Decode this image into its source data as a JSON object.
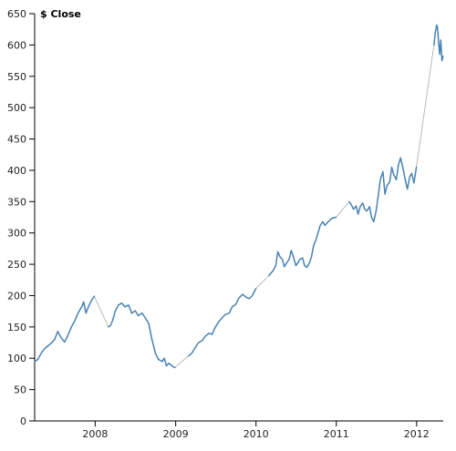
{
  "chart_data": {
    "type": "line",
    "ylabel": "$ Close",
    "ylim": [
      0,
      650
    ],
    "y_ticks": [
      0,
      50,
      100,
      150,
      200,
      250,
      300,
      350,
      400,
      450,
      500,
      550,
      600,
      650
    ],
    "y_tick_labels": [
      "0",
      "50",
      "100",
      "150",
      "200",
      "250",
      "300",
      "350",
      "400",
      "450",
      "500",
      "550",
      "600",
      "650"
    ],
    "xlim": [
      "2007-04-01",
      "2012-05-01"
    ],
    "x_ticks": [
      "2008-01-01",
      "2009-01-01",
      "2010-01-01",
      "2011-01-01",
      "2012-01-01"
    ],
    "x_tick_labels": [
      "2008",
      "2009",
      "2010",
      "2011",
      "2012"
    ],
    "series_color": "#4682b4",
    "gap_color": "#bbbbbb",
    "segments": [
      [
        [
          "2007-04-01",
          95
        ],
        [
          "2007-04-15",
          98
        ],
        [
          "2007-05-01",
          108
        ],
        [
          "2007-05-15",
          115
        ],
        [
          "2007-06-01",
          120
        ],
        [
          "2007-06-15",
          124
        ],
        [
          "2007-07-01",
          130
        ],
        [
          "2007-07-15",
          143
        ],
        [
          "2007-08-01",
          132
        ],
        [
          "2007-08-15",
          126
        ],
        [
          "2007-09-01",
          138
        ],
        [
          "2007-09-15",
          150
        ],
        [
          "2007-10-01",
          160
        ],
        [
          "2007-10-15",
          172
        ],
        [
          "2007-11-01",
          182
        ],
        [
          "2007-11-10",
          190
        ],
        [
          "2007-11-20",
          172
        ],
        [
          "2007-12-01",
          182
        ],
        [
          "2007-12-15",
          192
        ],
        [
          "2007-12-28",
          199
        ]
      ],
      [
        [
          "2008-03-01",
          150
        ],
        [
          "2008-03-10",
          152
        ],
        [
          "2008-03-20",
          160
        ],
        [
          "2008-04-01",
          175
        ],
        [
          "2008-04-15",
          185
        ],
        [
          "2008-05-01",
          188
        ],
        [
          "2008-05-15",
          182
        ],
        [
          "2008-06-01",
          185
        ],
        [
          "2008-06-15",
          172
        ],
        [
          "2008-07-01",
          176
        ],
        [
          "2008-07-15",
          168
        ],
        [
          "2008-08-01",
          172
        ],
        [
          "2008-08-15",
          165
        ],
        [
          "2008-09-01",
          155
        ],
        [
          "2008-09-15",
          130
        ],
        [
          "2008-10-01",
          108
        ],
        [
          "2008-10-15",
          98
        ],
        [
          "2008-11-01",
          95
        ],
        [
          "2008-11-10",
          100
        ],
        [
          "2008-11-20",
          88
        ],
        [
          "2008-12-01",
          92
        ],
        [
          "2008-12-15",
          88
        ],
        [
          "2008-12-28",
          85
        ]
      ],
      [
        [
          "2009-03-01",
          104
        ],
        [
          "2009-03-15",
          108
        ],
        [
          "2009-04-01",
          118
        ],
        [
          "2009-04-15",
          125
        ],
        [
          "2009-05-01",
          128
        ],
        [
          "2009-05-15",
          135
        ],
        [
          "2009-06-01",
          140
        ],
        [
          "2009-06-15",
          138
        ],
        [
          "2009-07-01",
          150
        ],
        [
          "2009-07-15",
          158
        ],
        [
          "2009-08-01",
          165
        ],
        [
          "2009-08-15",
          170
        ],
        [
          "2009-09-01",
          172
        ],
        [
          "2009-09-15",
          182
        ],
        [
          "2009-10-01",
          186
        ],
        [
          "2009-10-15",
          196
        ],
        [
          "2009-11-01",
          202
        ],
        [
          "2009-11-15",
          198
        ],
        [
          "2009-12-01",
          195
        ],
        [
          "2009-12-15",
          200
        ],
        [
          "2009-12-31",
          211
        ]
      ],
      [
        [
          "2010-03-01",
          232
        ],
        [
          "2010-03-10",
          236
        ],
        [
          "2010-03-20",
          240
        ],
        [
          "2010-04-01",
          248
        ],
        [
          "2010-04-10",
          270
        ],
        [
          "2010-04-20",
          262
        ],
        [
          "2010-05-01",
          258
        ],
        [
          "2010-05-10",
          246
        ],
        [
          "2010-05-20",
          252
        ],
        [
          "2010-06-01",
          258
        ],
        [
          "2010-06-10",
          272
        ],
        [
          "2010-06-20",
          262
        ],
        [
          "2010-07-01",
          248
        ],
        [
          "2010-07-10",
          252
        ],
        [
          "2010-07-20",
          258
        ],
        [
          "2010-08-01",
          260
        ],
        [
          "2010-08-10",
          248
        ],
        [
          "2010-08-20",
          245
        ],
        [
          "2010-09-01",
          252
        ],
        [
          "2010-09-10",
          262
        ],
        [
          "2010-09-20",
          280
        ],
        [
          "2010-10-01",
          290
        ],
        [
          "2010-10-10",
          300
        ],
        [
          "2010-10-20",
          312
        ],
        [
          "2010-11-01",
          318
        ],
        [
          "2010-11-10",
          312
        ],
        [
          "2010-11-20",
          316
        ],
        [
          "2010-12-01",
          320
        ],
        [
          "2010-12-15",
          324
        ],
        [
          "2010-12-31",
          325
        ]
      ],
      [
        [
          "2011-03-01",
          350
        ],
        [
          "2011-03-10",
          345
        ],
        [
          "2011-03-20",
          338
        ],
        [
          "2011-04-01",
          343
        ],
        [
          "2011-04-10",
          330
        ],
        [
          "2011-04-20",
          342
        ],
        [
          "2011-05-01",
          348
        ],
        [
          "2011-05-10",
          338
        ],
        [
          "2011-05-20",
          335
        ],
        [
          "2011-06-01",
          342
        ],
        [
          "2011-06-10",
          325
        ],
        [
          "2011-06-20",
          318
        ],
        [
          "2011-07-01",
          335
        ],
        [
          "2011-07-10",
          358
        ],
        [
          "2011-07-20",
          385
        ],
        [
          "2011-08-01",
          398
        ],
        [
          "2011-08-10",
          362
        ],
        [
          "2011-08-20",
          376
        ],
        [
          "2011-09-01",
          382
        ],
        [
          "2011-09-10",
          405
        ],
        [
          "2011-09-20",
          392
        ],
        [
          "2011-10-01",
          385
        ],
        [
          "2011-10-10",
          408
        ],
        [
          "2011-10-20",
          420
        ],
        [
          "2011-11-01",
          402
        ],
        [
          "2011-11-10",
          385
        ],
        [
          "2011-11-20",
          370
        ],
        [
          "2011-12-01",
          390
        ],
        [
          "2011-12-10",
          395
        ],
        [
          "2011-12-20",
          380
        ],
        [
          "2011-12-31",
          405
        ]
      ],
      [
        [
          "2012-03-20",
          600
        ],
        [
          "2012-03-25",
          618
        ],
        [
          "2012-04-01",
          632
        ],
        [
          "2012-04-05",
          628
        ],
        [
          "2012-04-10",
          605
        ],
        [
          "2012-04-15",
          585
        ],
        [
          "2012-04-20",
          608
        ],
        [
          "2012-04-25",
          575
        ],
        [
          "2012-04-30",
          582
        ]
      ]
    ]
  }
}
